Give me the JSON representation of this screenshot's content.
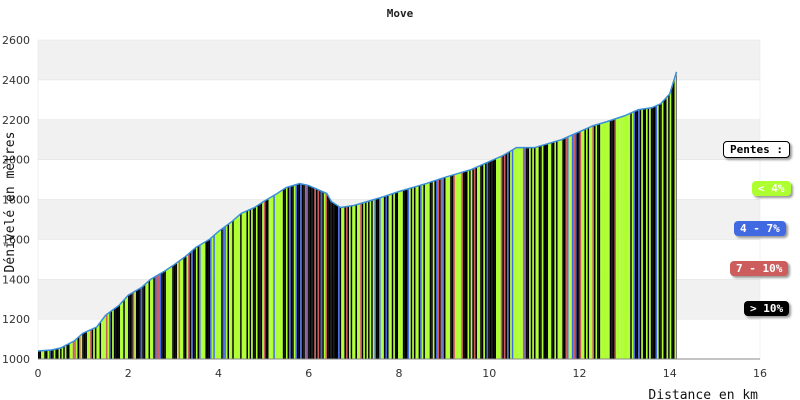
{
  "chart_data": {
    "type": "area",
    "title": "Move",
    "xlabel": "Distance en km",
    "ylabel": "Dénivelé en mètres",
    "xlim": [
      0,
      16
    ],
    "ylim": [
      1000,
      2600
    ],
    "x_ticks": [
      "0",
      "2",
      "4",
      "6",
      "8",
      "10",
      "12",
      "14",
      "16"
    ],
    "y_ticks": [
      "1000",
      "1200",
      "1400",
      "1600",
      "1800",
      "2000",
      "2200",
      "2400",
      "2600"
    ],
    "grid": "horizontal bands",
    "profile_x": [
      0,
      0.3,
      0.5,
      0.8,
      1.0,
      1.3,
      1.5,
      1.8,
      2.0,
      2.3,
      2.5,
      2.8,
      3.0,
      3.3,
      3.5,
      3.8,
      4.0,
      4.3,
      4.5,
      4.8,
      5.0,
      5.3,
      5.5,
      5.8,
      6.0,
      6.2,
      6.4,
      6.5,
      6.7,
      7.0,
      7.3,
      7.6,
      8.0,
      8.3,
      8.6,
      9.0,
      9.3,
      9.6,
      10.0,
      10.3,
      10.6,
      10.8,
      11.0,
      11.3,
      11.6,
      12.0,
      12.3,
      12.6,
      13.0,
      13.3,
      13.6,
      13.8,
      14.0,
      14.15
    ],
    "profile_y": [
      1040,
      1045,
      1055,
      1090,
      1130,
      1160,
      1220,
      1270,
      1320,
      1360,
      1400,
      1440,
      1470,
      1520,
      1560,
      1600,
      1640,
      1690,
      1730,
      1760,
      1790,
      1830,
      1860,
      1880,
      1870,
      1850,
      1830,
      1790,
      1760,
      1770,
      1790,
      1810,
      1840,
      1860,
      1880,
      1910,
      1930,
      1950,
      1990,
      2020,
      2060,
      2060,
      2060,
      2080,
      2100,
      2140,
      2170,
      2190,
      2220,
      2250,
      2260,
      2280,
      2330,
      2440
    ],
    "bar_colors": [
      "#adff2f",
      "#000000",
      "#4169e1",
      "#cd5c5c"
    ],
    "line_color": "#3a8fd8",
    "legend": {
      "placement": "right",
      "title": "Pentes :",
      "items": [
        {
          "label": "< 4%",
          "color": "#adff2f"
        },
        {
          "label": "4 - 7%",
          "color": "#4169e1"
        },
        {
          "label": "7 - 10%",
          "color": "#cd5c5c"
        },
        {
          "label": "> 10%",
          "color": "#000000"
        }
      ]
    }
  }
}
